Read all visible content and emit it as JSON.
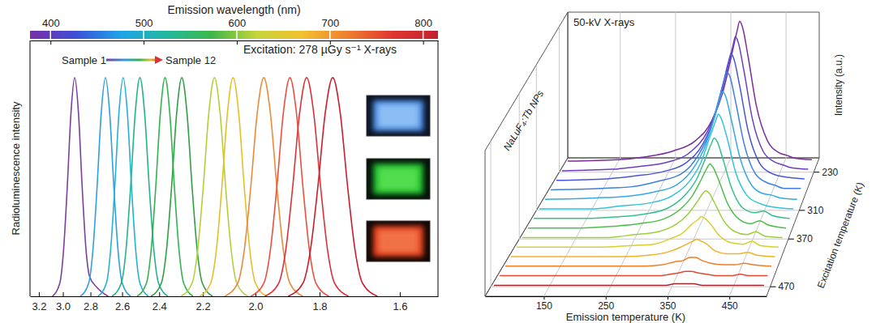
{
  "chart_data": [
    {
      "type": "line",
      "x_label": "Emission wavelength (nm)",
      "y_label": "Radioluminescence intensity",
      "annotations": [
        "Sample 1",
        "Sample 12",
        "Excitation: 278 µGy s⁻¹ X-rays"
      ],
      "xlim": [
        378,
        816
      ],
      "xticks": [
        400,
        500,
        600,
        700,
        800
      ],
      "x2ticks": [
        {
          "value": 387.5,
          "label": "3.2"
        },
        {
          "value": 413.3,
          "label": "3.0"
        },
        {
          "value": 442.9,
          "label": "2.8"
        },
        {
          "value": 476.9,
          "label": "2.6"
        },
        {
          "value": 516.7,
          "label": "2.4"
        },
        {
          "value": 563.6,
          "label": "2.2"
        },
        {
          "value": 620,
          "label": "2.0"
        },
        {
          "value": 688.9,
          "label": "1.8"
        },
        {
          "value": 775,
          "label": "1.6"
        }
      ],
      "ylim": [
        0,
        1.17
      ],
      "tick_labels": "x",
      "series": [
        {
          "color": "#7b3fa0",
          "x": [
            402,
            410,
            414,
            418,
            422,
            426,
            430,
            434,
            438,
            442,
            450,
            462
          ],
          "values": [
            0,
            0.06,
            0.21,
            0.5,
            0.84,
            1,
            0.84,
            0.5,
            0.22,
            0.09,
            0.04,
            0
          ]
        },
        {
          "color": "#2e9fe0",
          "x": [
            432,
            441,
            445.5,
            450,
            454.5,
            459,
            463.5,
            468,
            472.5,
            477,
            486
          ],
          "values": [
            0,
            0.06,
            0.21,
            0.5,
            0.84,
            1,
            0.84,
            0.5,
            0.21,
            0.06,
            0
          ]
        },
        {
          "color": "#25b0d8",
          "x": [
            451,
            460,
            464.5,
            469,
            473.5,
            478,
            482.5,
            487,
            491.5,
            496,
            505
          ],
          "values": [
            0,
            0.06,
            0.21,
            0.5,
            0.84,
            1,
            0.84,
            0.5,
            0.21,
            0.06,
            0
          ]
        },
        {
          "color": "#22b38a",
          "x": [
            466,
            476,
            481,
            486,
            491,
            496,
            501,
            506,
            511,
            516,
            526
          ],
          "values": [
            0,
            0.06,
            0.21,
            0.5,
            0.84,
            1,
            0.84,
            0.5,
            0.21,
            0.06,
            0
          ]
        },
        {
          "color": "#33b24e",
          "x": [
            493,
            503,
            508,
            513,
            518,
            523,
            528,
            533,
            538,
            543,
            553
          ],
          "values": [
            0,
            0.06,
            0.21,
            0.5,
            0.84,
            1,
            0.84,
            0.5,
            0.21,
            0.06,
            0
          ]
        },
        {
          "color": "#2ea043",
          "x": [
            508,
            519,
            524.5,
            530,
            535.5,
            541,
            546.5,
            552,
            557.5,
            563,
            574
          ],
          "values": [
            0,
            0.06,
            0.21,
            0.5,
            0.84,
            1,
            0.84,
            0.5,
            0.21,
            0.06,
            0
          ]
        },
        {
          "color": "#b5cf3a",
          "x": [
            540,
            552,
            558,
            564,
            570,
            576,
            582,
            588,
            594,
            600,
            612
          ],
          "values": [
            0,
            0.06,
            0.21,
            0.5,
            0.84,
            1,
            0.84,
            0.5,
            0.21,
            0.06,
            0
          ]
        },
        {
          "color": "#e3bf2c",
          "x": [
            560,
            572,
            578,
            584,
            590,
            596,
            602,
            608,
            614,
            620,
            632
          ],
          "values": [
            0,
            0.06,
            0.21,
            0.5,
            0.84,
            1,
            0.84,
            0.5,
            0.21,
            0.06,
            0
          ]
        },
        {
          "color": "#ec8a3a",
          "x": [
            587,
            601,
            608,
            615,
            622,
            629,
            636,
            643,
            650,
            657,
            671
          ],
          "values": [
            0,
            0.06,
            0.21,
            0.5,
            0.84,
            1,
            0.84,
            0.5,
            0.21,
            0.06,
            0
          ]
        },
        {
          "color": "#e8503f",
          "x": [
            615,
            629,
            636,
            643,
            650,
            657,
            664,
            671,
            678,
            685,
            699
          ],
          "values": [
            0,
            0.06,
            0.21,
            0.5,
            0.84,
            1,
            0.84,
            0.5,
            0.21,
            0.06,
            0
          ]
        },
        {
          "color": "#d9333a",
          "x": [
            630,
            645,
            652.5,
            660,
            667.5,
            675,
            682.5,
            690,
            697.5,
            705,
            720
          ],
          "values": [
            0,
            0.06,
            0.21,
            0.5,
            0.84,
            1,
            0.84,
            0.5,
            0.21,
            0.06,
            0
          ]
        },
        {
          "color": "#c81f2d",
          "x": [
            655,
            671,
            679,
            687,
            695,
            703,
            711,
            719,
            727,
            735,
            751
          ],
          "values": [
            0,
            0.06,
            0.21,
            0.5,
            0.84,
            1,
            0.84,
            0.5,
            0.21,
            0.06,
            0
          ]
        }
      ]
    },
    {
      "type": "line",
      "x_label": "Emission temperature (K)",
      "y_label": "Intensity (a.u.)",
      "z_label": "Excitation temperature (K)",
      "annotations": [
        "50-kV X-rays",
        "NaLuF₄:Tb NPs"
      ],
      "xlim": [
        55,
        510
      ],
      "xticks": [
        150,
        250,
        350,
        450
      ],
      "ylim": [
        0,
        1
      ],
      "zlim": [
        490,
        200
      ],
      "zticks": [
        230,
        310,
        370,
        470
      ],
      "grid": true,
      "x": [
        60,
        150,
        200,
        250,
        290,
        320,
        340,
        355,
        365,
        370,
        375,
        385,
        400,
        420,
        440,
        455,
        470,
        500
      ],
      "series": [
        {
          "z": 210,
          "color": "#7b2d9e",
          "values": [
            0.01,
            0.02,
            0.04,
            0.08,
            0.15,
            0.29,
            0.49,
            0.73,
            0.9,
            0.97,
            0.93,
            0.73,
            0.39,
            0.15,
            0.07,
            0.05,
            0.03,
            0.02
          ]
        },
        {
          "z": 230,
          "color": "#6a3fc0",
          "values": [
            0.01,
            0.02,
            0.04,
            0.07,
            0.14,
            0.28,
            0.47,
            0.7,
            0.86,
            0.93,
            0.89,
            0.7,
            0.37,
            0.14,
            0.07,
            0.05,
            0.03,
            0.02
          ]
        },
        {
          "z": 250,
          "color": "#4a55d6",
          "values": [
            0.01,
            0.02,
            0.04,
            0.07,
            0.13,
            0.26,
            0.44,
            0.66,
            0.82,
            0.88,
            0.84,
            0.66,
            0.35,
            0.13,
            0.06,
            0.04,
            0.03,
            0.02
          ]
        },
        {
          "z": 270,
          "color": "#3d7ee0",
          "values": [
            0.01,
            0.02,
            0.03,
            0.07,
            0.12,
            0.25,
            0.41,
            0.62,
            0.76,
            0.82,
            0.79,
            0.62,
            0.33,
            0.12,
            0.06,
            0.04,
            0.02,
            0.02
          ]
        },
        {
          "z": 290,
          "color": "#34a9e6",
          "values": [
            0.01,
            0.02,
            0.03,
            0.06,
            0.11,
            0.23,
            0.38,
            0.56,
            0.7,
            0.75,
            0.72,
            0.56,
            0.3,
            0.11,
            0.05,
            0.04,
            0.02,
            0.01
          ]
        },
        {
          "z": 310,
          "color": "#2fc3d9",
          "values": [
            0.01,
            0.01,
            0.03,
            0.05,
            0.1,
            0.2,
            0.33,
            0.5,
            0.61,
            0.66,
            0.63,
            0.5,
            0.26,
            0.1,
            0.05,
            0.03,
            0.02,
            0.01
          ]
        },
        {
          "z": 330,
          "color": "#35c08a",
          "values": [
            0.01,
            0.01,
            0.02,
            0.04,
            0.08,
            0.17,
            0.28,
            0.42,
            0.52,
            0.56,
            0.54,
            0.42,
            0.22,
            0.08,
            0.05,
            0.06,
            0.03,
            0.01
          ]
        },
        {
          "z": 350,
          "color": "#4cbf4a",
          "values": [
            0.01,
            0.01,
            0.02,
            0.04,
            0.07,
            0.14,
            0.23,
            0.34,
            0.42,
            0.45,
            0.43,
            0.34,
            0.18,
            0.07,
            0.04,
            0.06,
            0.03,
            0.01
          ]
        },
        {
          "z": 370,
          "color": "#9ccf3a",
          "values": [
            0.01,
            0.01,
            0.01,
            0.03,
            0.05,
            0.1,
            0.17,
            0.25,
            0.31,
            0.33,
            0.32,
            0.25,
            0.13,
            0.05,
            0.03,
            0.05,
            0.02,
            0.01
          ]
        },
        {
          "z": 390,
          "color": "#d6cf2e",
          "values": [
            0.01,
            0.01,
            0.01,
            0.02,
            0.03,
            0.07,
            0.11,
            0.17,
            0.2,
            0.22,
            0.21,
            0.17,
            0.09,
            0.04,
            0.03,
            0.05,
            0.02,
            0.01
          ]
        },
        {
          "z": 410,
          "color": "#f0b22a",
          "values": [
            0.01,
            0.01,
            0.01,
            0.01,
            0.02,
            0.04,
            0.07,
            0.1,
            0.12,
            0.13,
            0.12,
            0.1,
            0.05,
            0.03,
            0.03,
            0.04,
            0.02,
            0.01
          ]
        },
        {
          "z": 430,
          "color": "#ee7d2a",
          "values": [
            0.01,
            0.01,
            0.01,
            0.01,
            0.01,
            0.02,
            0.04,
            0.05,
            0.07,
            0.07,
            0.07,
            0.05,
            0.03,
            0.02,
            0.02,
            0.03,
            0.02,
            0.01
          ]
        },
        {
          "z": 450,
          "color": "#e04a2f",
          "values": [
            0.01,
            0.01,
            0.01,
            0.01,
            0.01,
            0.01,
            0.02,
            0.03,
            0.04,
            0.04,
            0.04,
            0.03,
            0.02,
            0.01,
            0.01,
            0.02,
            0.01,
            0.01
          ]
        },
        {
          "z": 470,
          "color": "#a0262c",
          "values": [
            0.01,
            0.01,
            0.01,
            0.01,
            0.01,
            0.01,
            0.01,
            0.02,
            0.02,
            0.02,
            0.02,
            0.02,
            0.01,
            0.01,
            0.01,
            0.01,
            0.01,
            0.01
          ]
        }
      ]
    }
  ]
}
